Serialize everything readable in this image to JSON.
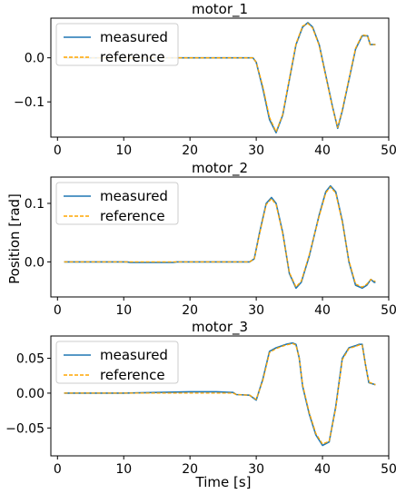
{
  "colors": {
    "measured": "#1f77b4",
    "reference": "#ffa500"
  },
  "figure": {
    "ylabel": "Position [rad]",
    "xlabel": "Time [s]"
  },
  "chart_data": [
    {
      "type": "line",
      "title": "motor_1",
      "xlim": [
        -1,
        50
      ],
      "ylim": [
        -0.18,
        0.09
      ],
      "xticks": [
        0,
        10,
        20,
        30,
        40,
        50
      ],
      "yticks": [
        -0.1,
        0.0
      ],
      "ytick_labels": [
        "−0.1",
        "0.0"
      ],
      "grid": false,
      "legend": "top-left",
      "series": [
        {
          "name": "measured",
          "style": "solid",
          "x": [
            1,
            29.5,
            30,
            31,
            32,
            33,
            34,
            35,
            36,
            37,
            37.8,
            38.5,
            39.5,
            40.5,
            41.5,
            42.3,
            43,
            44,
            45,
            46,
            46.8,
            47.2,
            48
          ],
          "y": [
            0.0,
            0.0,
            -0.01,
            -0.07,
            -0.14,
            -0.17,
            -0.13,
            -0.05,
            0.03,
            0.07,
            0.08,
            0.07,
            0.03,
            -0.04,
            -0.11,
            -0.16,
            -0.12,
            -0.05,
            0.02,
            0.05,
            0.05,
            0.03,
            0.03
          ]
        },
        {
          "name": "reference",
          "style": "dashed",
          "x": [
            1,
            29.5,
            30,
            31,
            32,
            33,
            34,
            35,
            36,
            37,
            37.8,
            38.5,
            39.5,
            40.5,
            41.5,
            42.3,
            43,
            44,
            45,
            46,
            46.8,
            47.2,
            48
          ],
          "y": [
            0.0,
            0.0,
            -0.01,
            -0.065,
            -0.135,
            -0.168,
            -0.128,
            -0.048,
            0.032,
            0.072,
            0.078,
            0.068,
            0.028,
            -0.042,
            -0.112,
            -0.158,
            -0.118,
            -0.048,
            0.022,
            0.052,
            0.05,
            0.03,
            0.03
          ]
        }
      ]
    },
    {
      "type": "line",
      "title": "motor_2",
      "xlim": [
        -1,
        50
      ],
      "ylim": [
        -0.06,
        0.145
      ],
      "xticks": [
        0,
        10,
        20,
        30,
        40,
        50
      ],
      "yticks": [
        0.0,
        0.1
      ],
      "ytick_labels": [
        "0.0",
        "0.1"
      ],
      "grid": false,
      "legend": "top-left",
      "series": [
        {
          "name": "measured",
          "style": "solid",
          "x": [
            1,
            10.5,
            11,
            17.5,
            18,
            29,
            29.7,
            30.5,
            31.5,
            32.3,
            33,
            34,
            35,
            36,
            36.8,
            38,
            39.5,
            40.5,
            41.2,
            42,
            43,
            44,
            45,
            46,
            46.7,
            47.3,
            47.8,
            48
          ],
          "y": [
            0.0,
            0.0,
            -0.001,
            -0.001,
            0.0,
            0.0,
            0.005,
            0.05,
            0.1,
            0.11,
            0.1,
            0.05,
            -0.02,
            -0.045,
            -0.035,
            0.01,
            0.08,
            0.12,
            0.13,
            0.12,
            0.07,
            0.0,
            -0.04,
            -0.045,
            -0.04,
            -0.03,
            -0.035,
            -0.035
          ]
        },
        {
          "name": "reference",
          "style": "dashed",
          "x": [
            1,
            29,
            29.7,
            30.5,
            31.5,
            32.3,
            33,
            34,
            35,
            36,
            36.8,
            38,
            39.5,
            40.5,
            41.2,
            42,
            43,
            44,
            45,
            46,
            46.7,
            47.3,
            47.8,
            48
          ],
          "y": [
            0.0,
            0.0,
            0.005,
            0.048,
            0.098,
            0.108,
            0.098,
            0.048,
            -0.018,
            -0.043,
            -0.033,
            0.012,
            0.078,
            0.118,
            0.128,
            0.118,
            0.068,
            0.002,
            -0.038,
            -0.043,
            -0.038,
            -0.03,
            -0.033,
            -0.033
          ]
        }
      ]
    },
    {
      "type": "line",
      "title": "motor_3",
      "xlim": [
        -1,
        50
      ],
      "ylim": [
        -0.09,
        0.082
      ],
      "xticks": [
        0,
        10,
        20,
        30,
        40,
        50
      ],
      "yticks": [
        -0.05,
        0.0,
        0.05
      ],
      "ytick_labels": [
        "−0.05",
        "0.00",
        "0.05"
      ],
      "grid": false,
      "legend": "top-left",
      "series": [
        {
          "name": "measured",
          "style": "solid",
          "x": [
            1,
            10,
            15,
            20,
            24,
            26.5,
            27,
            29,
            30,
            31,
            32,
            33,
            34.5,
            35.5,
            36,
            36.5,
            37,
            38,
            39,
            40,
            41,
            42,
            43,
            44,
            45,
            45.5,
            46,
            46.5,
            47,
            48
          ],
          "y": [
            0.0,
            0.0,
            0.001,
            0.002,
            0.002,
            0.001,
            -0.002,
            -0.003,
            -0.01,
            0.02,
            0.06,
            0.065,
            0.07,
            0.072,
            0.07,
            0.05,
            0.01,
            -0.03,
            -0.06,
            -0.075,
            -0.07,
            -0.02,
            0.05,
            0.065,
            0.068,
            0.07,
            0.07,
            0.04,
            0.015,
            0.012
          ]
        },
        {
          "name": "reference",
          "style": "dashed",
          "x": [
            1,
            26.5,
            27,
            29,
            30,
            31,
            32,
            33,
            34.5,
            35.5,
            36,
            36.5,
            37,
            38,
            39,
            40,
            41,
            42,
            43,
            44,
            45,
            45.5,
            46,
            46.5,
            47,
            48
          ],
          "y": [
            0.0,
            0.0,
            -0.002,
            -0.003,
            -0.009,
            0.018,
            0.058,
            0.064,
            0.069,
            0.071,
            0.069,
            0.05,
            0.012,
            -0.028,
            -0.058,
            -0.073,
            -0.069,
            -0.022,
            0.048,
            0.064,
            0.067,
            0.069,
            0.069,
            0.04,
            0.016,
            0.012
          ]
        }
      ]
    }
  ]
}
